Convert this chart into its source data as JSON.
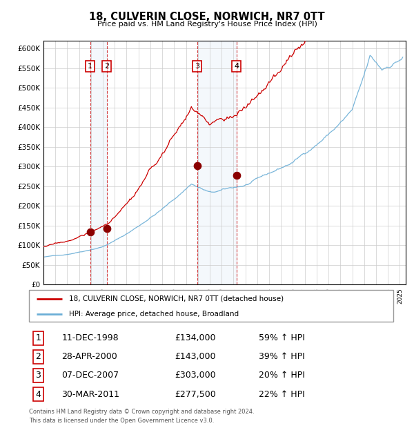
{
  "title": "18, CULVERIN CLOSE, NORWICH, NR7 0TT",
  "subtitle": "Price paid vs. HM Land Registry's House Price Index (HPI)",
  "legend_line1": "18, CULVERIN CLOSE, NORWICH, NR7 0TT (detached house)",
  "legend_line2": "HPI: Average price, detached house, Broadland",
  "footer1": "Contains HM Land Registry data © Crown copyright and database right 2024.",
  "footer2": "This data is licensed under the Open Government Licence v3.0.",
  "hpi_color": "#6baed6",
  "price_color": "#cc0000",
  "dot_color": "#8b0000",
  "vline_color": "#cc0000",
  "shade_color": "#c6dbef",
  "transactions": [
    {
      "num": 1,
      "date_str": "11-DEC-1998",
      "date_x": 1998.94,
      "price": 134000,
      "pct": "59%",
      "dir": "↑"
    },
    {
      "num": 2,
      "date_str": "28-APR-2000",
      "date_x": 2000.32,
      "price": 143000,
      "pct": "39%",
      "dir": "↑"
    },
    {
      "num": 3,
      "date_str": "07-DEC-2007",
      "date_x": 2007.93,
      "price": 303000,
      "pct": "20%",
      "dir": "↑"
    },
    {
      "num": 4,
      "date_str": "30-MAR-2011",
      "date_x": 2011.24,
      "price": 277500,
      "pct": "22%",
      "dir": "↑"
    }
  ],
  "ylim": [
    0,
    620000
  ],
  "xlim_start": 1995.0,
  "xlim_end": 2025.5,
  "yticks": [
    0,
    50000,
    100000,
    150000,
    200000,
    250000,
    300000,
    350000,
    400000,
    450000,
    500000,
    550000,
    600000
  ],
  "ytick_labels": [
    "£0",
    "£50K",
    "£100K",
    "£150K",
    "£200K",
    "£250K",
    "£300K",
    "£350K",
    "£400K",
    "£450K",
    "£500K",
    "£550K",
    "£600K"
  ]
}
